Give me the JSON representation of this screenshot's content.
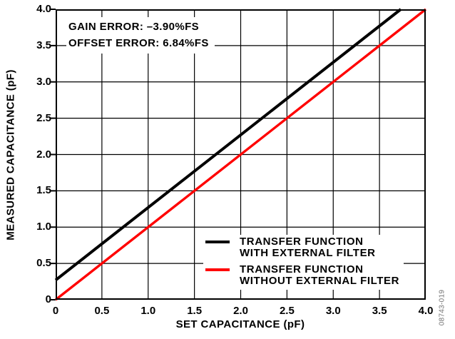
{
  "chart_data": {
    "type": "line",
    "title": "",
    "xlabel": "SET CAPACITANCE (pF)",
    "ylabel": "MEASURED CAPACITANCE (pF)",
    "xlim": [
      0,
      4
    ],
    "ylim": [
      0,
      4
    ],
    "xticks": [
      0,
      0.5,
      1.0,
      1.5,
      2.0,
      2.5,
      3.0,
      3.5,
      4.0
    ],
    "xtick_labels": [
      "0",
      "0.5",
      "1.0",
      "1.5",
      "2.0",
      "2.5",
      "3.0",
      "3.5",
      "4.0"
    ],
    "yticks": [
      0,
      0.5,
      1.0,
      1.5,
      2.0,
      2.5,
      3.0,
      3.5,
      4.0
    ],
    "ytick_labels": [
      "0",
      "0.5",
      "1.0",
      "1.5",
      "2.0",
      "2.5",
      "3.0",
      "3.5",
      "4.0"
    ],
    "grid": true,
    "grid_step": 0.5,
    "legend_position": "lower right",
    "annotations": {
      "gain_error": "GAIN ERROR: –3.90%FS",
      "offset_error": "OFFSET ERROR: 6.84%FS"
    },
    "series": [
      {
        "name": "TRANSFER FUNCTION WITH EXTERNAL FILTER",
        "legend_line1": "TRANSFER FUNCTION",
        "legend_line2": "WITH EXTERNAL FILTER",
        "color": "#000000",
        "line_width": 4,
        "points": [
          [
            0,
            0.27
          ],
          [
            3.73,
            4.0
          ]
        ]
      },
      {
        "name": "TRANSFER FUNCTION WITHOUT EXTERNAL FILTER",
        "legend_line1": "TRANSFER FUNCTION",
        "legend_line2": "WITHOUT EXTERNAL FILTER",
        "color": "#ff0000",
        "line_width": 3.4,
        "points": [
          [
            0,
            0.0
          ],
          [
            4.0,
            4.0
          ]
        ]
      }
    ],
    "figure_code": "08743-019",
    "colors": {
      "axis": "#000000",
      "grid": "#000000",
      "code_text": "#737373"
    }
  }
}
